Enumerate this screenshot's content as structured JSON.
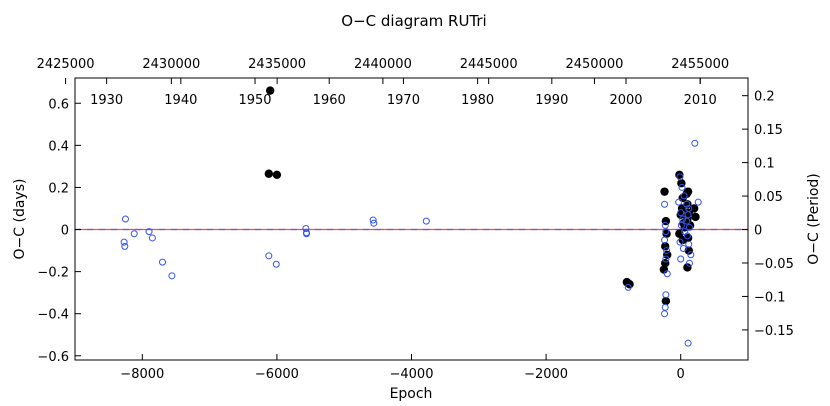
{
  "chart_data": {
    "type": "scatter",
    "title": "O−C diagram RUTri",
    "xlabel": "Epoch",
    "ylabel": "O−C (days)",
    "ylabel_right": "O−C (Period)",
    "xlim": [
      -9000,
      1000
    ],
    "ylim": [
      -0.62,
      0.72
    ],
    "x_ticks": [
      -8000,
      -6000,
      -4000,
      -2000,
      0
    ],
    "x_tick_labels": [
      "−8000",
      "−6000",
      "−4000",
      "−2000",
      "0"
    ],
    "y_ticks": [
      -0.6,
      -0.4,
      -0.2,
      0,
      0.2,
      0.4,
      0.6
    ],
    "y_tick_labels": [
      "−0.6",
      "−0.4",
      "−0.2",
      "0",
      "0.2",
      "0.4",
      "0.6"
    ],
    "right_ticks": [
      -0.15,
      -0.1,
      -0.05,
      0,
      0.05,
      0.1,
      0.15,
      0.2
    ],
    "right_tick_labels": [
      "−0.15",
      "−0.1",
      "−0.05",
      "0",
      "0.05",
      "0.1",
      "0.15",
      "0.2"
    ],
    "period_days": 3.18,
    "top_jd_ticks": [
      2425000,
      2430000,
      2435000,
      2440000,
      2445000,
      2450000,
      2455000
    ],
    "top_jd_tick_labels": [
      "2425000",
      "2430000",
      "2435000",
      "2440000",
      "2445000",
      "2450000",
      "2455000"
    ],
    "top_jd_epoch_ref": [
      [
        2425000,
        -9140
      ],
      [
        2455000,
        290
      ]
    ],
    "year_ticks": [
      1930,
      1940,
      1950,
      1960,
      1970,
      1980,
      1990,
      2000,
      2010
    ],
    "year_tick_labels": [
      "1930",
      "1940",
      "1950",
      "1960",
      "1970",
      "1980",
      "1990",
      "2000",
      "2010"
    ],
    "year_epoch_ref": [
      [
        1930,
        -8530
      ],
      [
        2010,
        290
      ]
    ],
    "zero_line": {
      "y": 0,
      "colors": [
        "#ff4444",
        "#4466ff"
      ],
      "style": "dashed"
    },
    "series": [
      {
        "marker": "filled-circle",
        "color": "#000000",
        "points": [
          [
            -6100,
            0.66
          ],
          [
            -6120,
            0.265
          ],
          [
            -6000,
            0.26
          ],
          [
            -800,
            -0.25
          ],
          [
            -760,
            -0.26
          ],
          [
            -240,
            0.18
          ],
          [
            -220,
            0.04
          ],
          [
            -210,
            -0.02
          ],
          [
            -230,
            -0.08
          ],
          [
            -200,
            -0.12
          ],
          [
            -230,
            -0.16
          ],
          [
            -250,
            -0.19
          ],
          [
            -220,
            -0.34
          ],
          [
            -20,
            0.26
          ],
          [
            10,
            0.22
          ],
          [
            30,
            0.15
          ],
          [
            20,
            0.1
          ],
          [
            0,
            0.07
          ],
          [
            40,
            0.03
          ],
          [
            60,
            0.01
          ],
          [
            -20,
            -0.02
          ],
          [
            30,
            -0.05
          ],
          [
            90,
            0.17
          ],
          [
            110,
            0.18
          ],
          [
            100,
            0.12
          ],
          [
            120,
            0.08
          ],
          [
            100,
            0.05
          ],
          [
            140,
            0.02
          ],
          [
            110,
            -0.04
          ],
          [
            120,
            -0.1
          ],
          [
            100,
            -0.18
          ],
          [
            200,
            0.1
          ],
          [
            220,
            0.06
          ]
        ]
      },
      {
        "marker": "open-circle",
        "color": "#3355ee",
        "points": [
          [
            -8250,
            0.05
          ],
          [
            -8270,
            -0.06
          ],
          [
            -8260,
            -0.08
          ],
          [
            -8120,
            -0.02
          ],
          [
            -7900,
            -0.01
          ],
          [
            -7850,
            -0.04
          ],
          [
            -7700,
            -0.155
          ],
          [
            -7560,
            -0.22
          ],
          [
            -6120,
            -0.125
          ],
          [
            -6010,
            -0.165
          ],
          [
            -5570,
            0.005
          ],
          [
            -5560,
            -0.015
          ],
          [
            -5560,
            -0.02
          ],
          [
            -4570,
            0.045
          ],
          [
            -4560,
            0.03
          ],
          [
            -3780,
            0.04
          ],
          [
            -780,
            -0.275
          ],
          [
            -240,
            0.12
          ],
          [
            -230,
            0.02
          ],
          [
            -220,
            -0.01
          ],
          [
            -240,
            -0.05
          ],
          [
            -210,
            -0.1
          ],
          [
            -220,
            -0.14
          ],
          [
            -200,
            -0.21
          ],
          [
            -220,
            -0.31
          ],
          [
            -230,
            -0.37
          ],
          [
            -240,
            -0.4
          ],
          [
            -10,
            0.25
          ],
          [
            20,
            0.2
          ],
          [
            50,
            0.16
          ],
          [
            -30,
            0.13
          ],
          [
            0,
            0.08
          ],
          [
            30,
            0.05
          ],
          [
            10,
            0.02
          ],
          [
            60,
            -0.01
          ],
          [
            -10,
            -0.06
          ],
          [
            40,
            -0.09
          ],
          [
            0,
            -0.14
          ],
          [
            90,
            0.12
          ],
          [
            120,
            0.1
          ],
          [
            110,
            0.07
          ],
          [
            90,
            0.04
          ],
          [
            130,
            0.01
          ],
          [
            100,
            -0.03
          ],
          [
            120,
            -0.07
          ],
          [
            150,
            -0.12
          ],
          [
            130,
            -0.16
          ],
          [
            110,
            -0.54
          ],
          [
            210,
            0.41
          ],
          [
            260,
            0.13
          ]
        ]
      }
    ]
  }
}
